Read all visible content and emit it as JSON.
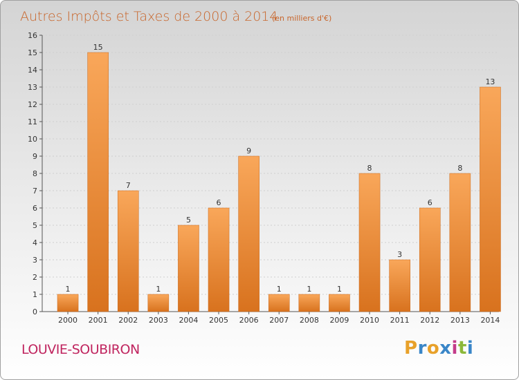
{
  "chart_data": {
    "type": "bar",
    "title": "Autres Impôts et Taxes de 2000 à 2014",
    "subtitle": "(en milliers d'€)",
    "categories": [
      "2000",
      "2001",
      "2002",
      "2003",
      "2004",
      "2005",
      "2006",
      "2007",
      "2008",
      "2009",
      "2010",
      "2011",
      "2012",
      "2013",
      "2014"
    ],
    "values": [
      1,
      15,
      7,
      1,
      5,
      6,
      9,
      1,
      1,
      1,
      8,
      3,
      6,
      8,
      13
    ],
    "ylim": [
      0,
      16
    ],
    "yticks": [
      0,
      1,
      2,
      3,
      4,
      5,
      6,
      7,
      8,
      9,
      10,
      11,
      12,
      13,
      14,
      15,
      16
    ],
    "xlabel": "",
    "ylabel": "",
    "grid": true,
    "bar_color": "#f08a2c"
  },
  "commune": "LOUVIE-SOUBIRON",
  "brand": {
    "letters": [
      "P",
      "r",
      "o",
      "x",
      "i",
      "t",
      "i"
    ],
    "colors": [
      "#e8a12a",
      "#3a86c8",
      "#e8a12a",
      "#3a86c8",
      "#c43c8a",
      "#8cb83a",
      "#3a86c8"
    ]
  }
}
